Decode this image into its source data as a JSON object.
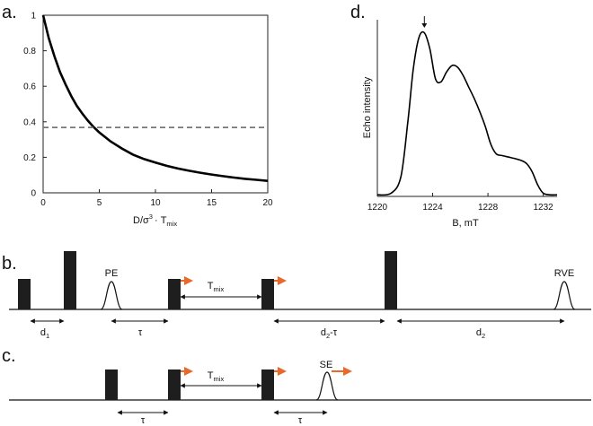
{
  "panels": {
    "a": "a.",
    "b": "b.",
    "c": "c.",
    "d": "d."
  },
  "chart_data": [
    {
      "id": "a",
      "type": "line",
      "xlabel_main": "D/σ",
      "xlabel_sup": "3",
      "xlabel_mid": "· T",
      "xlabel_sub": "mix",
      "ylabel": "",
      "xlim": [
        0,
        20
      ],
      "ylim": [
        0,
        1
      ],
      "xticks": [
        0,
        5,
        10,
        15,
        20
      ],
      "xtick_labels": [
        "0",
        "5",
        "10",
        "15",
        "20"
      ],
      "yticks": [
        0,
        0.2,
        0.4,
        0.6,
        0.8,
        1
      ],
      "ytick_labels": [
        "0",
        "0.2",
        "0.4",
        "0.6",
        "0.8",
        "1"
      ],
      "series": [
        {
          "name": "decay",
          "style": "solid",
          "color": "#000000",
          "x": [
            0,
            0.5,
            1,
            1.5,
            2,
            2.5,
            3,
            3.5,
            4,
            4.5,
            5,
            6,
            7,
            8,
            9,
            10,
            11,
            12,
            13,
            14,
            15,
            16,
            17,
            18,
            19,
            20
          ],
          "y": [
            1.0,
            0.87,
            0.77,
            0.68,
            0.61,
            0.545,
            0.49,
            0.445,
            0.405,
            0.37,
            0.34,
            0.29,
            0.25,
            0.215,
            0.19,
            0.17,
            0.152,
            0.137,
            0.124,
            0.113,
            0.103,
            0.094,
            0.086,
            0.079,
            0.073,
            0.067
          ]
        },
        {
          "name": "1/e level",
          "style": "dashed",
          "color": "#777777",
          "x": [
            0,
            20
          ],
          "y": [
            0.368,
            0.368
          ]
        }
      ]
    },
    {
      "id": "d",
      "type": "line",
      "xlabel": "B, mT",
      "ylabel": "Echo intensity",
      "xlim": [
        1220,
        1233
      ],
      "ylim": [
        0,
        1.08
      ],
      "xticks": [
        1220,
        1224,
        1228,
        1232
      ],
      "xtick_labels": [
        "1220",
        "1224",
        "1228",
        "1232"
      ],
      "marker": {
        "x": 1223.4,
        "symbol": "down-arrow"
      },
      "series": [
        {
          "name": "spectrum",
          "color": "#000000",
          "x": [
            1220,
            1221,
            1221.7,
            1222.2,
            1222.6,
            1223,
            1223.4,
            1223.8,
            1224.2,
            1224.6,
            1225,
            1225.4,
            1225.8,
            1226.2,
            1226.6,
            1227,
            1227.4,
            1227.8,
            1228.2,
            1228.6,
            1229,
            1229.5,
            1230,
            1230.4,
            1230.8,
            1231.2,
            1231.6,
            1232,
            1232.5,
            1233
          ],
          "y": [
            0.01,
            0.02,
            0.12,
            0.45,
            0.78,
            0.97,
            1.0,
            0.9,
            0.72,
            0.7,
            0.76,
            0.8,
            0.79,
            0.74,
            0.67,
            0.6,
            0.52,
            0.43,
            0.32,
            0.26,
            0.25,
            0.24,
            0.23,
            0.22,
            0.2,
            0.15,
            0.07,
            0.02,
            0.01,
            0.01
          ]
        }
      ]
    }
  ],
  "sequence_b": {
    "labels": {
      "pe": "PE",
      "rve": "RVE",
      "tmix_main": "T",
      "tmix_sub": "mix",
      "d1_main": "d",
      "d1_sub": "1",
      "tau": "τ",
      "d2tau_main": "d",
      "d2tau_sub": "2",
      "d2tau_tail": "-τ",
      "d2_main": "d",
      "d2_sub": "2"
    }
  },
  "sequence_c": {
    "labels": {
      "se": "SE",
      "tmix_main": "T",
      "tmix_sub": "mix",
      "tau1": "τ",
      "tau2": "τ"
    }
  },
  "colors": {
    "pulse": "#1e1e1e",
    "arrow_accent": "#e8692a",
    "dashed": "#777777"
  }
}
